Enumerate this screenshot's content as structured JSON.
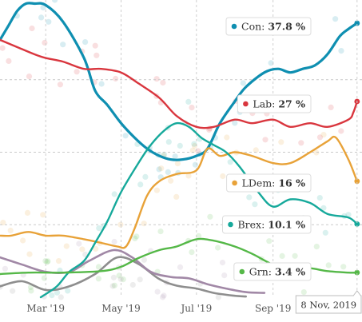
{
  "chart_data": {
    "type": "line",
    "x_axis": {
      "range": [
        "2019-01-23",
        "2019-11-12"
      ],
      "ticks": [
        {
          "date": "2019-03-01",
          "label": "Mar '19"
        },
        {
          "date": "2019-05-01",
          "label": "May '19"
        },
        {
          "date": "2019-07-01",
          "label": "Jul '19"
        },
        {
          "date": "2019-09-01",
          "label": "Sep '19"
        }
      ],
      "grid": "dashed vertical lines"
    },
    "y_axis": {
      "range": [
        0,
        41
      ],
      "gridlines": [
        10,
        20,
        30
      ],
      "labels_shown": false
    },
    "marker_date": "2019-11-08",
    "marker_label": "8 Nov, 2019",
    "series": [
      {
        "name": "Con",
        "latest_label": "37.8 %",
        "color": "#0f8fb1",
        "x": [
          "2019-01-23",
          "2019-01-30",
          "2019-02-06",
          "2019-02-13",
          "2019-02-20",
          "2019-03-01",
          "2019-03-15",
          "2019-04-01",
          "2019-04-10",
          "2019-04-20",
          "2019-05-01",
          "2019-05-12",
          "2019-05-22",
          "2019-06-01",
          "2019-06-10",
          "2019-06-20",
          "2019-07-01",
          "2019-07-10",
          "2019-07-20",
          "2019-08-01",
          "2019-08-10",
          "2019-08-25",
          "2019-09-05",
          "2019-09-15",
          "2019-09-25",
          "2019-10-05",
          "2019-10-15",
          "2019-10-25",
          "2019-11-01",
          "2019-11-08"
        ],
        "y": [
          35.5,
          37.5,
          39.5,
          40.5,
          40.5,
          40.3,
          38,
          33,
          28.5,
          26.5,
          24,
          22,
          20.5,
          19.5,
          19,
          19,
          19.5,
          20.5,
          24,
          27,
          29,
          31,
          31.5,
          31,
          31.5,
          32,
          33.5,
          36,
          37,
          37.8
        ]
      },
      {
        "name": "Lab",
        "latest_label": "27 %",
        "color": "#d9363e",
        "x": [
          "2019-01-23",
          "2019-02-06",
          "2019-02-20",
          "2019-03-01",
          "2019-03-15",
          "2019-04-01",
          "2019-04-15",
          "2019-05-01",
          "2019-05-15",
          "2019-06-01",
          "2019-06-15",
          "2019-07-01",
          "2019-07-15",
          "2019-08-01",
          "2019-08-15",
          "2019-09-01",
          "2019-09-15",
          "2019-10-01",
          "2019-10-15",
          "2019-11-01",
          "2019-11-05",
          "2019-11-08"
        ],
        "y": [
          35.5,
          34.5,
          33.5,
          33,
          32.5,
          31.5,
          31.5,
          31,
          29.5,
          27.5,
          25,
          23.5,
          23.5,
          24.5,
          24,
          24.5,
          23.5,
          24,
          23.5,
          24.5,
          25.5,
          27
        ]
      },
      {
        "name": "LDem",
        "latest_label": "16 %",
        "color": "#e8a238",
        "x": [
          "2019-01-23",
          "2019-02-01",
          "2019-02-15",
          "2019-03-01",
          "2019-03-15",
          "2019-04-01",
          "2019-04-15",
          "2019-04-28",
          "2019-05-05",
          "2019-05-12",
          "2019-05-22",
          "2019-06-01",
          "2019-06-15",
          "2019-07-01",
          "2019-07-10",
          "2019-07-20",
          "2019-08-01",
          "2019-08-15",
          "2019-09-01",
          "2019-09-15",
          "2019-10-01",
          "2019-10-15",
          "2019-10-22",
          "2019-11-01",
          "2019-11-08"
        ],
        "y": [
          8.5,
          8.5,
          9,
          8.5,
          8.5,
          8,
          7.5,
          7,
          7,
          9.5,
          14,
          16,
          17,
          17.5,
          20.5,
          19.5,
          20,
          19.5,
          18.5,
          18.5,
          20,
          21.5,
          22,
          19,
          16
        ]
      },
      {
        "name": "Brex",
        "latest_label": "10.1 %",
        "color": "#16a99b",
        "x": [
          "2019-02-25",
          "2019-03-10",
          "2019-03-20",
          "2019-04-01",
          "2019-04-10",
          "2019-04-20",
          "2019-05-01",
          "2019-05-15",
          "2019-05-25",
          "2019-06-05",
          "2019-06-15",
          "2019-06-25",
          "2019-07-05",
          "2019-07-15",
          "2019-07-25",
          "2019-08-05",
          "2019-08-20",
          "2019-09-01",
          "2019-09-15",
          "2019-10-01",
          "2019-10-15",
          "2019-11-01",
          "2019-11-08"
        ],
        "y": [
          0,
          1.5,
          3.5,
          5,
          7.5,
          10.5,
          14.5,
          18.5,
          21,
          23,
          24,
          23.5,
          22,
          21,
          20,
          18,
          14.5,
          12.5,
          13.5,
          13,
          11.5,
          11,
          10.1
        ]
      },
      {
        "name": "Grn",
        "latest_label": "3.4 %",
        "color": "#55b848",
        "x": [
          "2019-01-23",
          "2019-02-15",
          "2019-03-15",
          "2019-04-15",
          "2019-05-01",
          "2019-05-15",
          "2019-06-01",
          "2019-06-15",
          "2019-07-01",
          "2019-07-15",
          "2019-08-01",
          "2019-08-15",
          "2019-09-01",
          "2019-09-15",
          "2019-10-01",
          "2019-10-15",
          "2019-11-01",
          "2019-11-08"
        ],
        "y": [
          3.2,
          3.4,
          3.4,
          3.6,
          4.2,
          5.4,
          6.5,
          7,
          8,
          7.8,
          7,
          6,
          4.5,
          4,
          4,
          3.6,
          3.4,
          3.4
        ]
      },
      {
        "color": "#8e8e8e",
        "x": [
          "2019-01-23",
          "2019-02-10",
          "2019-03-01",
          "2019-03-20",
          "2019-04-10",
          "2019-04-28",
          "2019-05-15",
          "2019-06-01",
          "2019-06-15",
          "2019-07-01",
          "2019-07-15",
          "2019-08-01",
          "2019-08-10"
        ],
        "y": [
          1.5,
          2.2,
          1,
          1.5,
          3.2,
          5.5,
          4.6,
          2.5,
          1.6,
          1.2,
          0.6,
          0.2,
          0.1
        ]
      },
      {
        "color": "#a188a6",
        "x": [
          "2019-01-23",
          "2019-02-10",
          "2019-03-01",
          "2019-03-20",
          "2019-04-05",
          "2019-04-25",
          "2019-05-10",
          "2019-05-25",
          "2019-06-10",
          "2019-06-25",
          "2019-07-10",
          "2019-07-25",
          "2019-08-10",
          "2019-08-25"
        ],
        "y": [
          5.5,
          4.5,
          3.5,
          3.5,
          5,
          6.5,
          5.5,
          3.5,
          2.8,
          2.6,
          1.8,
          1.2,
          0.7,
          0.6
        ]
      }
    ]
  }
}
